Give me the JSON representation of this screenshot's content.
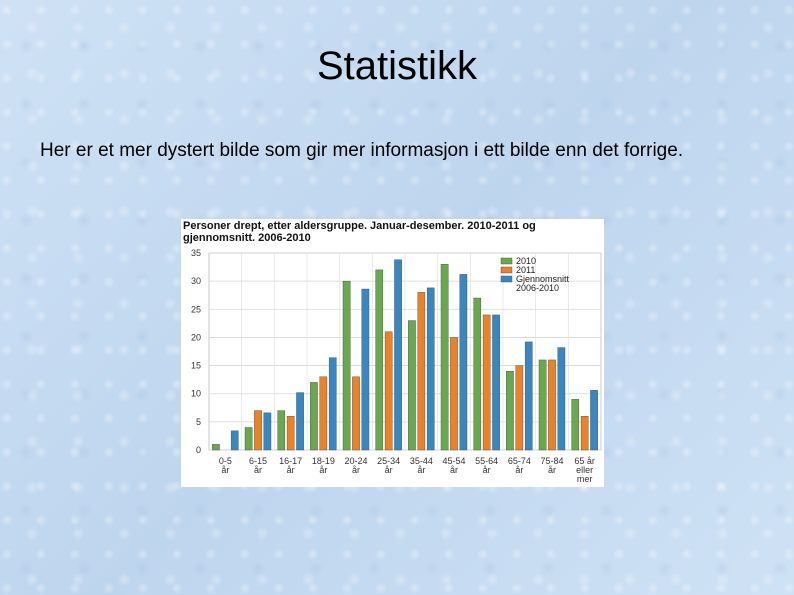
{
  "slide": {
    "title": "Statistikk",
    "text": "Her er et mer dystert bilde som gir mer informasjon i ett bilde enn det forrige."
  },
  "chart_data": {
    "type": "bar",
    "title": "Personer drept, etter aldersgruppe. Januar-desember. 2010-2011 og gjennomsnitt. 2006-2010",
    "categories": [
      [
        "0-5",
        "år"
      ],
      [
        "6-15",
        "år"
      ],
      [
        "16-17",
        "år"
      ],
      [
        "18-19",
        "år"
      ],
      [
        "20-24",
        "år"
      ],
      [
        "25-34",
        "år"
      ],
      [
        "35-44",
        "år"
      ],
      [
        "45-54",
        "år"
      ],
      [
        "55-64",
        "år"
      ],
      [
        "65-74",
        "år"
      ],
      [
        "75-84",
        "år"
      ],
      [
        "65 år",
        "eller",
        "mer"
      ]
    ],
    "series": [
      {
        "name": "2010",
        "color": "#6aa84f",
        "values": [
          1,
          4,
          7,
          12,
          30,
          32,
          23,
          33,
          27,
          14,
          16,
          9
        ]
      },
      {
        "name": "2011",
        "color": "#e8832a",
        "values": [
          0,
          7,
          6,
          13,
          13,
          21,
          28,
          20,
          24,
          15,
          16,
          6
        ]
      },
      {
        "name": "Gjennomsnitt 2006-2010",
        "legend_lines": [
          "Gjennomsnitt",
          "2006-2010"
        ],
        "color": "#3a87c0",
        "values": [
          3.4,
          6.6,
          10.2,
          16.4,
          28.6,
          33.8,
          28.8,
          31.2,
          24,
          19.2,
          18.2,
          10.6
        ]
      }
    ],
    "ylim": [
      0,
      35
    ],
    "yticks": [
      0,
      5,
      10,
      15,
      20,
      25,
      30,
      35
    ],
    "grid": true,
    "legend_position": "top-right"
  }
}
